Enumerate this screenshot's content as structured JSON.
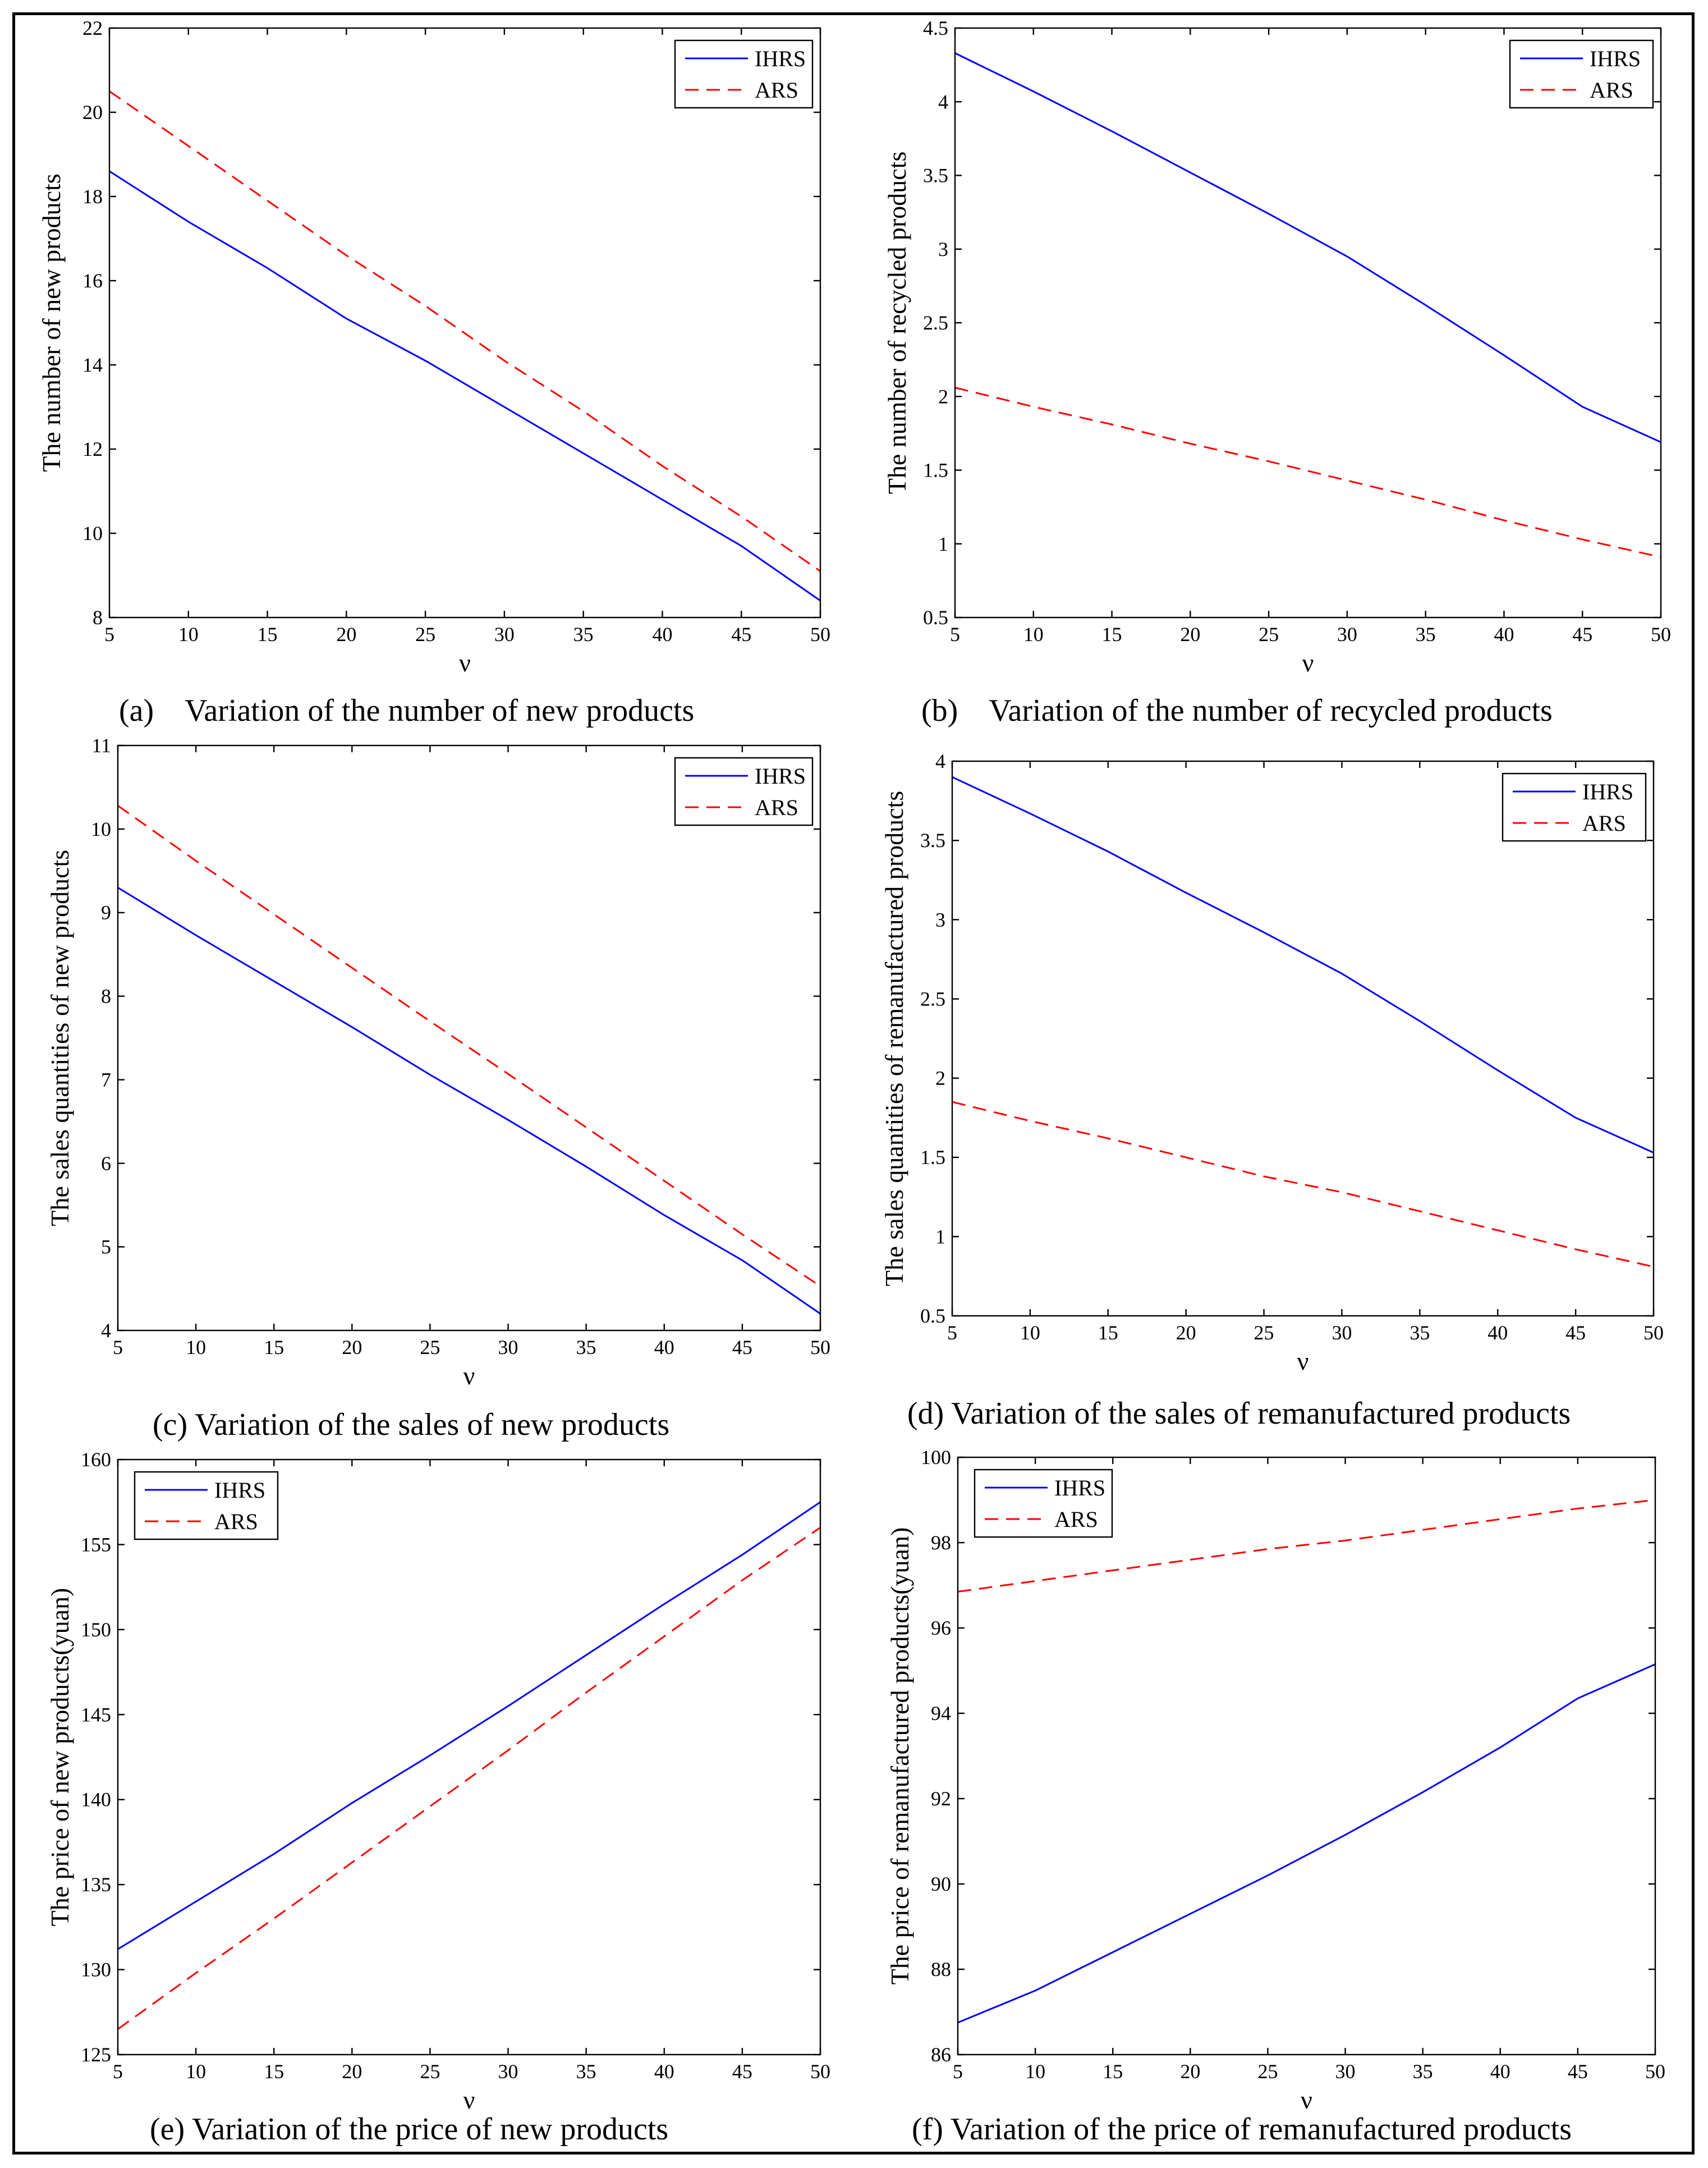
{
  "chart_data": [
    {
      "type": "line",
      "caption": "(a)    Variation of the number of new products",
      "xlabel": "ν",
      "ylabel": "The number of new products",
      "xlim": [
        5,
        50
      ],
      "ylim": [
        8,
        22
      ],
      "xticks": [
        5,
        10,
        15,
        20,
        25,
        30,
        35,
        40,
        45,
        50
      ],
      "yticks": [
        8,
        10,
        12,
        14,
        16,
        18,
        20,
        22
      ],
      "legend": "top-right",
      "x": [
        5,
        10,
        15,
        20,
        25,
        30,
        35,
        40,
        45,
        50
      ],
      "series": [
        {
          "name": "IHRS",
          "values": [
            18.6,
            17.4,
            16.3,
            15.1,
            14.1,
            13.0,
            11.9,
            10.8,
            9.7,
            8.4
          ]
        },
        {
          "name": "ARS",
          "values": [
            20.5,
            19.2,
            17.9,
            16.6,
            15.4,
            14.1,
            12.9,
            11.6,
            10.4,
            9.1
          ]
        }
      ]
    },
    {
      "type": "line",
      "caption": "(b)    Variation of the number of recycled products",
      "xlabel": "ν",
      "ylabel": "The number of recycled products",
      "xlim": [
        5,
        50
      ],
      "ylim": [
        0.5,
        4.5
      ],
      "xticks": [
        5,
        10,
        15,
        20,
        25,
        30,
        35,
        40,
        45,
        50
      ],
      "yticks": [
        0.5,
        1,
        1.5,
        2,
        2.5,
        3,
        3.5,
        4,
        4.5
      ],
      "legend": "top-right",
      "x": [
        5,
        10,
        15,
        20,
        25,
        30,
        35,
        40,
        45,
        50
      ],
      "series": [
        {
          "name": "IHRS",
          "values": [
            4.33,
            4.07,
            3.8,
            3.52,
            3.24,
            2.95,
            2.62,
            2.28,
            1.93,
            1.69
          ]
        },
        {
          "name": "ARS",
          "values": [
            2.06,
            1.93,
            1.81,
            1.68,
            1.56,
            1.43,
            1.3,
            1.16,
            1.03,
            0.91
          ]
        }
      ]
    },
    {
      "type": "line",
      "caption": "(c) Variation of the sales of new products",
      "xlabel": "ν",
      "ylabel": "The sales quantities of new products",
      "xlim": [
        5,
        50
      ],
      "ylim": [
        4,
        11
      ],
      "xticks": [
        5,
        10,
        15,
        20,
        25,
        30,
        35,
        40,
        45,
        50
      ],
      "yticks": [
        4,
        5,
        6,
        7,
        8,
        9,
        10,
        11
      ],
      "legend": "top-right",
      "x": [
        5,
        10,
        15,
        20,
        25,
        30,
        35,
        40,
        45,
        50
      ],
      "series": [
        {
          "name": "IHRS",
          "values": [
            9.3,
            8.73,
            8.18,
            7.63,
            7.06,
            6.52,
            5.96,
            5.38,
            4.84,
            4.2
          ]
        },
        {
          "name": "ARS",
          "values": [
            10.28,
            9.62,
            8.98,
            8.34,
            7.7,
            7.07,
            6.43,
            5.79,
            5.15,
            4.53
          ]
        }
      ]
    },
    {
      "type": "line",
      "caption": "(d) Variation of the sales of remanufactured products",
      "xlabel": "ν",
      "ylabel": "The sales quantities of remanufactured products",
      "xlim": [
        5,
        50
      ],
      "ylim": [
        0.5,
        4
      ],
      "xticks": [
        5,
        10,
        15,
        20,
        25,
        30,
        35,
        40,
        45,
        50
      ],
      "yticks": [
        0.5,
        1,
        1.5,
        2,
        2.5,
        3,
        3.5,
        4
      ],
      "legend": "top-right",
      "x": [
        5,
        10,
        15,
        20,
        25,
        30,
        35,
        40,
        45,
        50
      ],
      "series": [
        {
          "name": "IHRS",
          "values": [
            3.9,
            3.67,
            3.43,
            3.17,
            2.92,
            2.66,
            2.36,
            2.05,
            1.75,
            1.53
          ]
        },
        {
          "name": "ARS",
          "values": [
            1.85,
            1.73,
            1.62,
            1.5,
            1.38,
            1.28,
            1.16,
            1.04,
            0.92,
            0.81
          ]
        }
      ]
    },
    {
      "type": "line",
      "caption": "(e) Variation of the price of new products",
      "xlabel": "ν",
      "ylabel": "The price of new products(yuan)",
      "xlim": [
        5,
        50
      ],
      "ylim": [
        125,
        160
      ],
      "xticks": [
        5,
        10,
        15,
        20,
        25,
        30,
        35,
        40,
        45,
        50
      ],
      "yticks": [
        125,
        130,
        135,
        140,
        145,
        150,
        155,
        160
      ],
      "legend": "top-left",
      "x": [
        5,
        10,
        15,
        20,
        25,
        30,
        35,
        40,
        45,
        50
      ],
      "series": [
        {
          "name": "IHRS",
          "values": [
            131.2,
            134,
            136.8,
            139.8,
            142.6,
            145.5,
            148.5,
            151.5,
            154.4,
            157.5
          ]
        },
        {
          "name": "ARS",
          "values": [
            126.5,
            129.8,
            133,
            136.3,
            139.6,
            142.9,
            146.3,
            149.6,
            152.9,
            156
          ]
        }
      ]
    },
    {
      "type": "line",
      "caption": "(f) Variation of the price of remanufactured products",
      "xlabel": "ν",
      "ylabel": "The price of remanufactured products(yuan)",
      "xlim": [
        5,
        50
      ],
      "ylim": [
        86,
        100
      ],
      "xticks": [
        5,
        10,
        15,
        20,
        25,
        30,
        35,
        40,
        45,
        50
      ],
      "yticks": [
        86,
        88,
        90,
        92,
        94,
        96,
        98,
        100
      ],
      "legend": "top-left",
      "x": [
        5,
        10,
        15,
        20,
        25,
        30,
        35,
        40,
        45,
        50
      ],
      "series": [
        {
          "name": "IHRS",
          "values": [
            86.75,
            87.5,
            88.4,
            89.3,
            90.2,
            91.15,
            92.15,
            93.2,
            94.35,
            95.15
          ]
        },
        {
          "name": "ARS",
          "values": [
            96.85,
            97.1,
            97.35,
            97.6,
            97.85,
            98.05,
            98.3,
            98.55,
            98.8,
            99.0
          ]
        }
      ]
    }
  ],
  "colors": {
    "IHRS": "#0000ff",
    "ARS": "#ff0000"
  }
}
